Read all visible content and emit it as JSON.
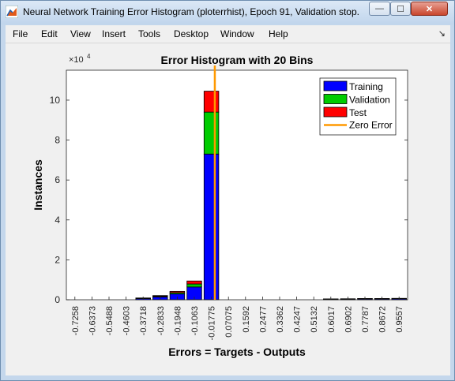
{
  "window": {
    "title": "Neural Network Training Error Histogram (ploterrhist), Epoch 91, Validation stop.",
    "minimize_glyph": "—",
    "maximize_glyph": "☐",
    "close_glyph": "✕"
  },
  "menu": {
    "items": [
      "File",
      "Edit",
      "View",
      "Insert",
      "Tools",
      "Desktop",
      "Window",
      "Help"
    ],
    "dock_arrow": "↘"
  },
  "chart_data": {
    "type": "bar",
    "stacked": true,
    "title": "Error Histogram with 20 Bins",
    "xlabel": "Errors = Targets - Outputs",
    "ylabel": "Instances",
    "y_exponent_label": "×10",
    "y_exponent_power": "4",
    "ylim": [
      0,
      115000
    ],
    "yticks": [
      0,
      20000,
      40000,
      60000,
      80000,
      100000
    ],
    "ytick_labels": [
      "0",
      "2",
      "4",
      "6",
      "8",
      "10"
    ],
    "categories": [
      "-0.7258",
      "-0.6373",
      "-0.5488",
      "-0.4603",
      "-0.3718",
      "-0.2833",
      "-0.1948",
      "-0.1063",
      "-0.01775",
      "0.07075",
      "0.1592",
      "0.2477",
      "0.3362",
      "0.4247",
      "0.5132",
      "0.6017",
      "0.6902",
      "0.7787",
      "0.8672",
      "0.9557"
    ],
    "series": [
      {
        "name": "Training",
        "color": "#0000ff",
        "values": [
          0,
          0,
          0,
          0,
          600,
          1400,
          2900,
          6400,
          73000,
          0,
          0,
          0,
          0,
          0,
          0,
          300,
          350,
          450,
          450,
          500
        ]
      },
      {
        "name": "Validation",
        "color": "#00cc00",
        "values": [
          0,
          0,
          0,
          0,
          150,
          350,
          650,
          1500,
          21000,
          0,
          0,
          0,
          0,
          0,
          0,
          60,
          70,
          90,
          90,
          100
        ]
      },
      {
        "name": "Test",
        "color": "#ff0000",
        "values": [
          0,
          0,
          0,
          0,
          150,
          350,
          650,
          1500,
          10500,
          0,
          0,
          0,
          0,
          0,
          0,
          60,
          70,
          90,
          90,
          100
        ]
      }
    ],
    "zero_error": {
      "name": "Zero Error",
      "color": "#ff9900",
      "x": 0
    },
    "legend_position": "top-right",
    "grid": false
  }
}
